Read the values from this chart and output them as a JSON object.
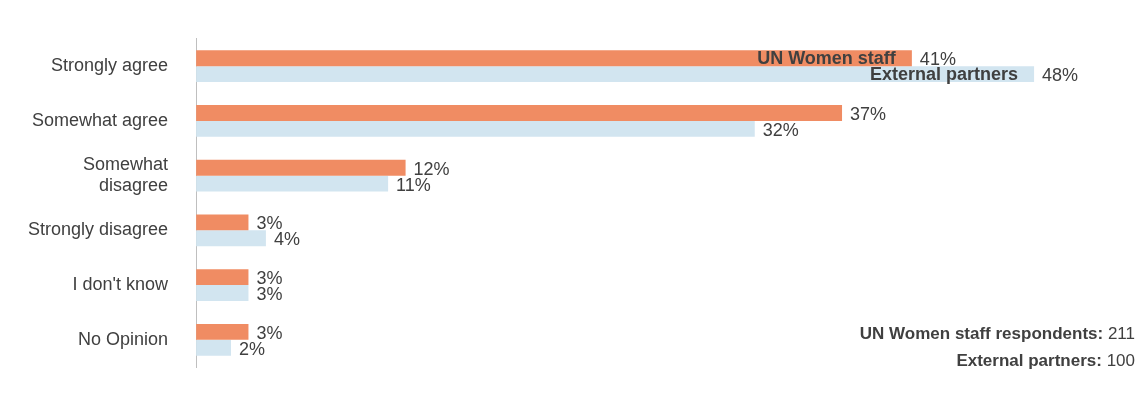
{
  "chart_data": {
    "type": "bar",
    "orientation": "horizontal",
    "categories": [
      "Strongly agree",
      "Somewhat agree",
      "Somewhat\ndisagree",
      "Strongly disagree",
      "I don't know",
      "No Opinion"
    ],
    "series": [
      {
        "name": "UN Women staff",
        "color": "#f08c63",
        "values": [
          41,
          37,
          12,
          3,
          3,
          3
        ],
        "value_labels": [
          "41%",
          "37%",
          "12%",
          "3%",
          "3%",
          "3%"
        ]
      },
      {
        "name": "External partners",
        "color": "#d2e5f0",
        "values": [
          48,
          32,
          11,
          4,
          3,
          2
        ],
        "value_labels": [
          "48%",
          "32%",
          "11%",
          "4%",
          "3%",
          "2%"
        ]
      }
    ],
    "legend": false,
    "grid": false,
    "annotations": [
      "UN Women staff respondents: 211",
      "External partners: 100"
    ]
  }
}
